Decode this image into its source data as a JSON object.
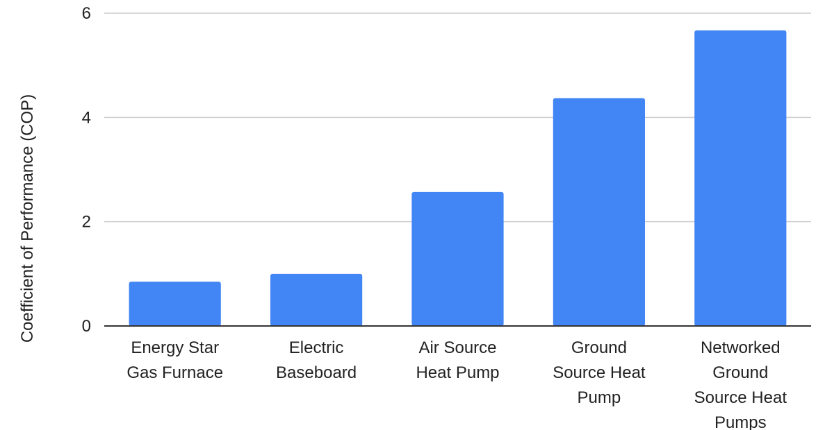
{
  "chart_data": {
    "type": "bar",
    "title": "",
    "xlabel": "",
    "ylabel": "Coefficient of Performance (COP)",
    "categories": [
      [
        "Energy Star",
        "Gas Furnace"
      ],
      [
        "Electric",
        "Baseboard"
      ],
      [
        "Air Source",
        "Heat Pump"
      ],
      [
        "Ground",
        "Source Heat",
        "Pump"
      ],
      [
        "Networked",
        "Ground",
        "Source Heat",
        "Pumps"
      ]
    ],
    "values": [
      0.85,
      1.0,
      2.57,
      4.37,
      5.67
    ],
    "ylim": [
      0,
      6
    ],
    "yticks": [
      0,
      2,
      4,
      6
    ],
    "grid": true,
    "legend": "none",
    "colors": {
      "bar": "#4285f4",
      "grid": "#cccccc",
      "axis": "#333333"
    }
  }
}
